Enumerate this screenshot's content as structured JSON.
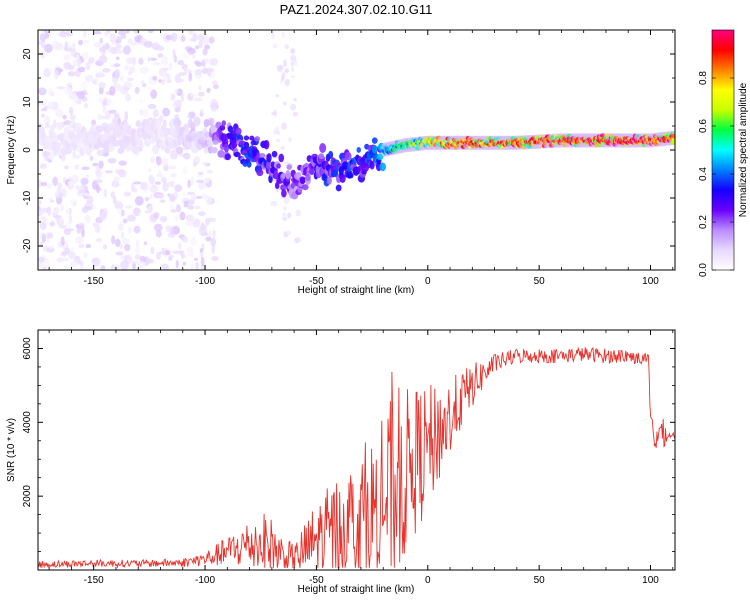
{
  "title": "PAZ1.2024.307.02.10.G11",
  "chart_data": [
    {
      "type": "heatmap",
      "xlabel": "Height of straight line (km)",
      "ylabel": "Frequency (Hz)",
      "xlim": [
        -175,
        111
      ],
      "ylim": [
        -25,
        25
      ],
      "xticks": [
        -150,
        -100,
        -50,
        0,
        50,
        100
      ],
      "yticks": [
        -20,
        -10,
        0,
        10,
        20
      ],
      "grid": false,
      "colorbar": {
        "label": "Normalized spectral amplitude",
        "range": [
          0,
          1
        ],
        "ticks": [
          0.0,
          0.2,
          0.4,
          0.6,
          0.8
        ],
        "colormap": [
          "#ffffff",
          "#e8d8ff",
          "#b98cff",
          "#6a00ff",
          "#1400ff",
          "#0080ff",
          "#00ffff",
          "#00ff40",
          "#c8ff00",
          "#ffff00",
          "#ff8000",
          "#ff0000",
          "#ff0080"
        ]
      },
      "ridge": {
        "x": [
          -160,
          -140,
          -120,
          -100,
          -90,
          -80,
          -70,
          -60,
          -50,
          -40,
          -30,
          -20,
          -10,
          0,
          10,
          20,
          40,
          60,
          80,
          100,
          110
        ],
        "frequency": [
          2,
          3,
          3,
          3,
          2,
          0,
          -3,
          -8,
          -2,
          -5,
          -3,
          0,
          1,
          1.5,
          1.5,
          1.5,
          1.5,
          2,
          2,
          2,
          2.5
        ],
        "amplitude": [
          0.06,
          0.07,
          0.07,
          0.1,
          0.28,
          0.35,
          0.3,
          0.22,
          0.3,
          0.35,
          0.35,
          0.45,
          0.6,
          0.72,
          0.85,
          0.88,
          0.9,
          0.92,
          0.94,
          0.95,
          0.9
        ]
      }
    },
    {
      "type": "line",
      "xlabel": "Height of straight line (km)",
      "ylabel": "SNR (10 * v/v)",
      "xlim": [
        -175,
        111
      ],
      "ylim": [
        0,
        6500
      ],
      "xticks": [
        -150,
        -100,
        -50,
        0,
        50,
        100
      ],
      "yticks": [
        2000,
        4000,
        6000
      ],
      "color": "#e8322c",
      "envelope": {
        "x": [
          -175,
          -150,
          -125,
          -110,
          -100,
          -90,
          -80,
          -72,
          -65,
          -60,
          -50,
          -40,
          -30,
          -20,
          -15,
          -10,
          -5,
          0,
          5,
          10,
          15,
          20,
          25,
          30,
          40,
          50,
          60,
          70,
          80,
          90,
          97,
          99,
          100,
          101,
          103,
          105,
          108,
          111
        ],
        "mean": [
          150,
          180,
          180,
          200,
          300,
          500,
          700,
          700,
          400,
          300,
          800,
          1100,
          1400,
          1800,
          2200,
          2600,
          3000,
          3300,
          3700,
          4100,
          4600,
          5000,
          5300,
          5600,
          5800,
          5800,
          5800,
          5850,
          5800,
          5800,
          5700,
          5800,
          4000,
          3800,
          3600,
          3700,
          3650,
          3650
        ],
        "amp": [
          100,
          100,
          100,
          120,
          200,
          400,
          700,
          900,
          500,
          400,
          1100,
          1500,
          1800,
          2200,
          2800,
          2300,
          2000,
          1700,
          1400,
          1100,
          800,
          600,
          400,
          250,
          200,
          200,
          200,
          200,
          200,
          200,
          150,
          150,
          300,
          400,
          600,
          500,
          100,
          100
        ]
      }
    }
  ]
}
